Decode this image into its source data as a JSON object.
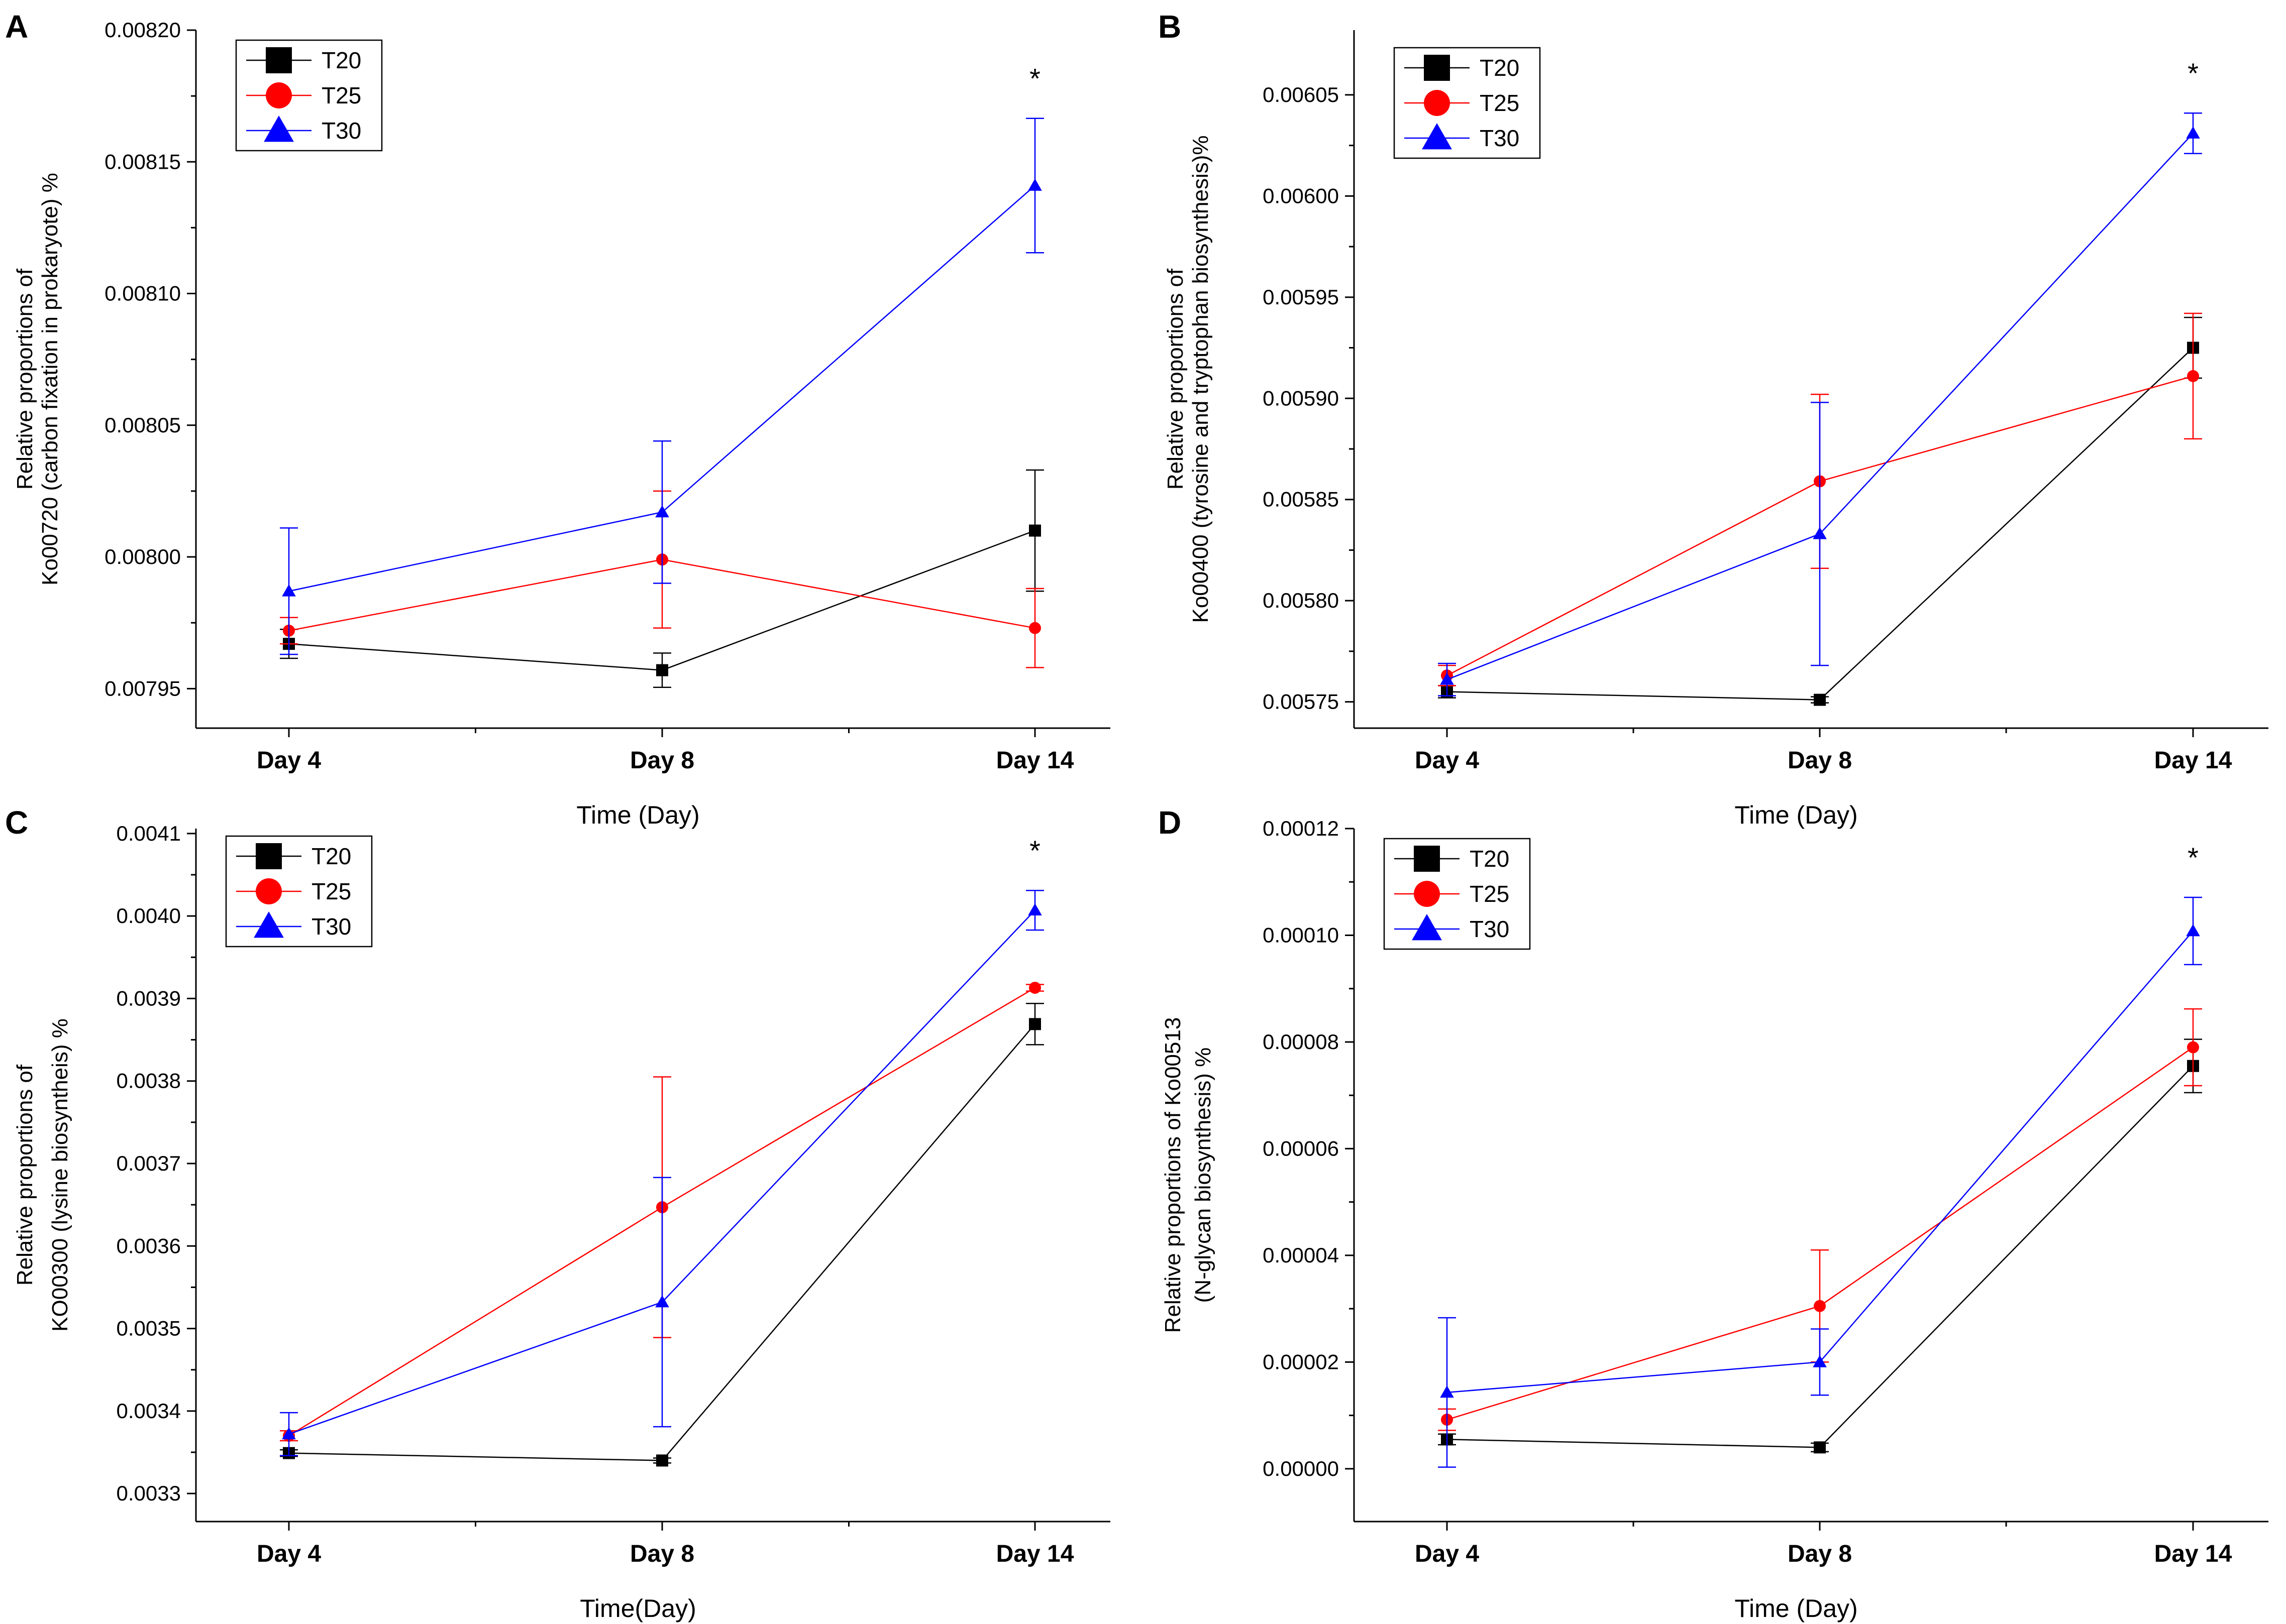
{
  "chart_data": [
    {
      "panel": "A",
      "type": "line",
      "categories": [
        "Day 4",
        "Day 8",
        "Day 14"
      ],
      "xlabel": "Time (Day)",
      "ylabel": [
        "Relative proportions of",
        "Ko00720 (carbon fixation in prokaryote) %"
      ],
      "ylim": [
        0.007935,
        0.0082
      ],
      "yticks": [
        0.00795,
        0.008,
        0.00805,
        0.0081,
        0.00815,
        0.0082
      ],
      "ytick_labels": [
        "0.00795",
        "0.00800",
        "0.00805",
        "0.00810",
        "0.00815",
        "0.00820"
      ],
      "significance": [
        {
          "category": "Day 14",
          "label": "*"
        }
      ],
      "legend": {
        "position": "top-left",
        "entries": [
          "T20",
          "T25",
          "T30"
        ]
      },
      "series": [
        {
          "name": "T20",
          "color": "#000000",
          "marker": "square",
          "values": [
            0.007967,
            0.007957,
            0.00801
          ],
          "errors": [
            5.5e-06,
            6.5e-06,
            2.3e-05
          ]
        },
        {
          "name": "T25",
          "color": "#ff0000",
          "marker": "circle",
          "values": [
            0.007972,
            0.007999,
            0.007973
          ],
          "errors": [
            5e-06,
            2.6e-05,
            1.5e-05
          ]
        },
        {
          "name": "T30",
          "color": "#0000ff",
          "marker": "triangle",
          "values": [
            0.007987,
            0.008017,
            0.008141
          ],
          "errors": [
            2.4e-05,
            2.7e-05,
            2.55e-05
          ]
        }
      ]
    },
    {
      "panel": "B",
      "type": "line",
      "categories": [
        "Day 4",
        "Day 8",
        "Day 14"
      ],
      "xlabel": "Time (Day)",
      "ylabel": [
        "Relative proportions of",
        "Ko00400 (tyrosine and tryptophan biosynthesis)%"
      ],
      "ylim": [
        0.005737,
        0.006082
      ],
      "yticks": [
        0.00575,
        0.0058,
        0.00585,
        0.0059,
        0.00595,
        0.006,
        0.00605
      ],
      "ytick_labels": [
        "0.00575",
        "0.00580",
        "0.00585",
        "0.00590",
        "0.00595",
        "0.00600",
        "0.00605"
      ],
      "significance": [
        {
          "category": "Day 14",
          "label": "*"
        }
      ],
      "legend": {
        "position": "top-left",
        "entries": [
          "T20",
          "T25",
          "T30"
        ]
      },
      "series": [
        {
          "name": "T20",
          "color": "#000000",
          "marker": "square",
          "values": [
            0.005755,
            0.005751,
            0.005925
          ],
          "errors": [
            3e-06,
            1.5e-06,
            1.5e-05
          ]
        },
        {
          "name": "T25",
          "color": "#ff0000",
          "marker": "circle",
          "values": [
            0.005763,
            0.005859,
            0.005911
          ],
          "errors": [
            5e-06,
            4.3e-05,
            3.1e-05
          ]
        },
        {
          "name": "T30",
          "color": "#0000ff",
          "marker": "triangle",
          "values": [
            0.005761,
            0.005833,
            0.006031
          ],
          "errors": [
            8e-06,
            6.5e-05,
            1e-05
          ]
        }
      ]
    },
    {
      "panel": "C",
      "type": "line",
      "categories": [
        "Day 4",
        "Day 8",
        "Day 14"
      ],
      "xlabel": "Time(Day)",
      "ylabel": [
        "Relative proportions of",
        "KO00300 (lysine biosyntheis) %"
      ],
      "ylim": [
        0.003266,
        0.004106
      ],
      "yticks": [
        0.0033,
        0.0034,
        0.0035,
        0.0036,
        0.0037,
        0.0038,
        0.0039,
        0.004,
        0.0041
      ],
      "ytick_labels": [
        "0.0033",
        "0.0034",
        "0.0035",
        "0.0036",
        "0.0037",
        "0.0038",
        "0.0039",
        "0.0040",
        "0.0041"
      ],
      "significance": [
        {
          "category": "Day 14",
          "label": "*"
        }
      ],
      "legend": {
        "position": "top-left",
        "entries": [
          "T20",
          "T25",
          "T30"
        ]
      },
      "series": [
        {
          "name": "T20",
          "color": "#000000",
          "marker": "square",
          "values": [
            0.003349,
            0.00334,
            0.003869
          ],
          "errors": [
            4e-06,
            3e-06,
            2.5e-05
          ]
        },
        {
          "name": "T25",
          "color": "#ff0000",
          "marker": "circle",
          "values": [
            0.00337,
            0.003647,
            0.003913
          ],
          "errors": [
            6e-06,
            0.000158,
            4e-06
          ]
        },
        {
          "name": "T30",
          "color": "#0000ff",
          "marker": "triangle",
          "values": [
            0.003372,
            0.003532,
            0.004007
          ],
          "errors": [
            2.6e-05,
            0.000151,
            2.4e-05
          ]
        }
      ]
    },
    {
      "panel": "D",
      "type": "line",
      "categories": [
        "Day 4",
        "Day 8",
        "Day 14"
      ],
      "xlabel": "Time (Day)",
      "ylabel": [
        "Relative proportions of Ko00513",
        "(N-glycan biosynthesis) %"
      ],
      "ylim": [
        -9.9e-06,
        0.00012
      ],
      "yticks": [
        0.0,
        2e-05,
        4e-05,
        6e-05,
        8e-05,
        0.0001,
        0.00012
      ],
      "ytick_labels": [
        "0.00000",
        "0.00002",
        "0.00004",
        "0.00006",
        "0.00008",
        "0.00010",
        "0.00012"
      ],
      "significance": [
        {
          "category": "Day 14",
          "label": "*"
        }
      ],
      "legend": {
        "position": "top-left",
        "entries": [
          "T20",
          "T25",
          "T30"
        ]
      },
      "series": [
        {
          "name": "T20",
          "color": "#000000",
          "marker": "square",
          "values": [
            5.5e-06,
            4e-06,
            7.55e-05
          ],
          "errors": [
            1e-06,
            8e-07,
            5e-06
          ]
        },
        {
          "name": "T25",
          "color": "#ff0000",
          "marker": "circle",
          "values": [
            9.2e-06,
            3.05e-05,
            7.9e-05
          ],
          "errors": [
            2e-06,
            1.05e-05,
            7.2e-06
          ]
        },
        {
          "name": "T30",
          "color": "#0000ff",
          "marker": "triangle",
          "values": [
            1.43e-05,
            2e-05,
            0.0001008
          ],
          "errors": [
            1.4e-05,
            6.2e-06,
            6.3e-06
          ]
        }
      ]
    }
  ]
}
